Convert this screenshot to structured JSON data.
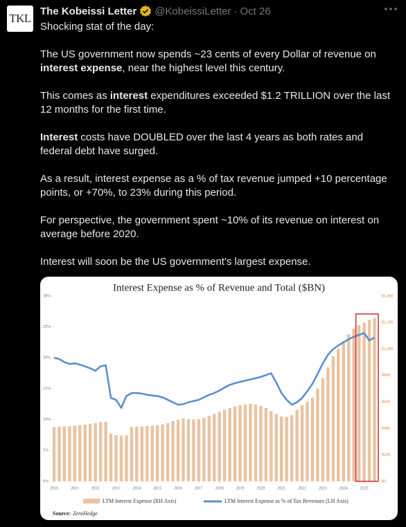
{
  "tweet": {
    "avatar": "TKL",
    "name": "The Kobeissi Letter",
    "handle": "@KobeissiLetter",
    "separator": "·",
    "date": "Oct 26",
    "paragraphs": [
      [
        {
          "text": "Shocking stat of the day:"
        }
      ],
      [
        {
          "text": "The US government now spends ~23 cents of every Dollar of revenue on "
        },
        {
          "text": "interest expense",
          "bold": true
        },
        {
          "text": ", near the highest level this century."
        }
      ],
      [
        {
          "text": "This comes as "
        },
        {
          "text": "interest",
          "bold": true
        },
        {
          "text": " expenditures exceeded $1.2 TRILLION over the last 12 months for the first time."
        }
      ],
      [
        {
          "text": "Interest",
          "bold": true
        },
        {
          "text": " costs have DOUBLED over the last 4 years as both rates and federal debt have surged."
        }
      ],
      [
        {
          "text": "As a result, interest expense as a % of tax revenue jumped +10 percentage points, or +70%, to 23% during this period."
        }
      ],
      [
        {
          "text": "For perspective, the government spent ~10% of its revenue on interest on average before 2020."
        }
      ],
      [
        {
          "text": "Interest will soon be the US government's largest expense."
        }
      ]
    ]
  },
  "chart_data": {
    "type": "combo",
    "title": "Interest Expense as % of  Revenue and Total ($BN)",
    "source_label": "Source:",
    "source": "ZeroHedge",
    "x": [
      2010,
      2010.25,
      2010.5,
      2010.75,
      2011,
      2011.25,
      2011.5,
      2011.75,
      2012,
      2012.25,
      2012.5,
      2012.75,
      2013,
      2013.25,
      2013.5,
      2013.75,
      2014,
      2014.25,
      2014.5,
      2014.75,
      2015,
      2015.25,
      2015.5,
      2015.75,
      2016,
      2016.25,
      2016.5,
      2016.75,
      2017,
      2017.25,
      2017.5,
      2017.75,
      2018,
      2018.25,
      2018.5,
      2018.75,
      2019,
      2019.25,
      2019.5,
      2019.75,
      2020,
      2020.25,
      2020.5,
      2020.75,
      2021,
      2021.25,
      2021.5,
      2021.75,
      2022,
      2022.25,
      2022.5,
      2022.75,
      2023,
      2023.25,
      2023.5,
      2023.75,
      2024,
      2024.25,
      2024.5,
      2024.75,
      2025,
      2025.25,
      2025.5
    ],
    "xlim": [
      2010,
      2025.65
    ],
    "xticks": [
      2010,
      2011,
      2012,
      2013,
      2014,
      2015,
      2016,
      2017,
      2018,
      2019,
      2020,
      2021,
      2022,
      2023,
      2024,
      2025
    ],
    "ylim": [
      0,
      30
    ],
    "yticks": [
      {
        "value": 0,
        "label": "0%"
      },
      {
        "value": 5,
        "label": "5%"
      },
      {
        "value": 10,
        "label": "10%"
      },
      {
        "value": 15,
        "label": "15%"
      },
      {
        "value": 20,
        "label": "20%"
      },
      {
        "value": 25,
        "label": "25%"
      },
      {
        "value": 30,
        "label": "30%"
      }
    ],
    "y2lim": [
      0,
      1400
    ],
    "y2ticks": [
      {
        "value": 0,
        "label": "$0"
      },
      {
        "value": 200,
        "label": "$200"
      },
      {
        "value": 400,
        "label": "$400"
      },
      {
        "value": 600,
        "label": "$600"
      },
      {
        "value": 800,
        "label": "$800"
      },
      {
        "value": 1000,
        "label": "$1,000"
      },
      {
        "value": 1200,
        "label": "$1,200"
      },
      {
        "value": 1400,
        "label": "$1,400"
      }
    ],
    "y2_tick_color": "#d9823b",
    "highlight_color": "#d62728",
    "series": [
      {
        "name": "LTM Interest Expense (RH Axis)",
        "type": "bar",
        "axis": "y2",
        "color": "#e9c3a2",
        "values": [
          410,
          412,
          415,
          418,
          420,
          425,
          430,
          435,
          440,
          448,
          450,
          360,
          350,
          345,
          348,
          410,
          413,
          415,
          418,
          420,
          425,
          430,
          440,
          455,
          465,
          475,
          470,
          468,
          470,
          480,
          495,
          510,
          525,
          540,
          554,
          565,
          575,
          580,
          585,
          580,
          570,
          554,
          530,
          510,
          490,
          486,
          500,
          540,
          575,
          600,
          632,
          700,
          780,
          860,
          945,
          1000,
          1060,
          1110,
          1155,
          1180,
          1200,
          1220,
          1233
        ]
      },
      {
        "name": "LTM Interest Expense as % of Tax Revenues (LH Axis)",
        "type": "line",
        "color": "#5b8fd0",
        "values": [
          20.0,
          19.8,
          19.3,
          19.0,
          19.1,
          18.9,
          18.6,
          18.3,
          17.9,
          18.6,
          18.8,
          13.5,
          13.2,
          11.9,
          13.8,
          14.3,
          14.3,
          14.2,
          14.0,
          13.9,
          13.8,
          13.6,
          13.2,
          12.8,
          12.4,
          12.5,
          12.8,
          13.0,
          13.2,
          13.6,
          14.0,
          14.3,
          14.7,
          15.2,
          15.6,
          15.9,
          16.1,
          16.3,
          16.5,
          16.7,
          16.9,
          17.2,
          17.5,
          16.0,
          14.3,
          13.2,
          12.4,
          12.8,
          13.5,
          14.6,
          15.8,
          17.4,
          19.1,
          20.5,
          21.4,
          22.0,
          22.5,
          23.0,
          23.4,
          23.7,
          24.0,
          22.8,
          23.3
        ]
      }
    ]
  }
}
